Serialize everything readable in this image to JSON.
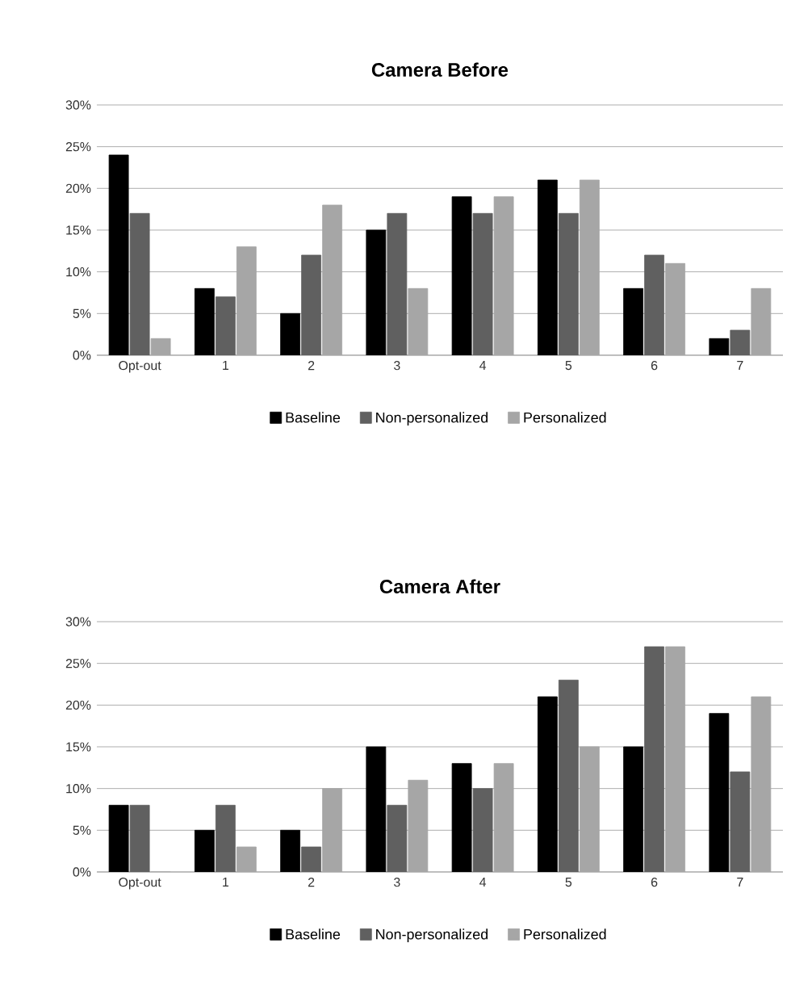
{
  "chart_data": [
    {
      "type": "bar",
      "title": "Camera Before",
      "categories": [
        "Opt-out",
        "1",
        "2",
        "3",
        "4",
        "5",
        "6",
        "7"
      ],
      "series": [
        {
          "name": "Baseline",
          "color": "#000000",
          "values": [
            24,
            8,
            5,
            15,
            19,
            21,
            8,
            2
          ]
        },
        {
          "name": "Non-personalized",
          "color": "#606060",
          "values": [
            17,
            7,
            12,
            17,
            17,
            17,
            12,
            3
          ]
        },
        {
          "name": "Personalized",
          "color": "#a6a6a6",
          "values": [
            2,
            13,
            18,
            8,
            19,
            21,
            11,
            8
          ]
        }
      ],
      "ylim": [
        0,
        30
      ],
      "yticks": [
        {
          "value": 0,
          "label": "0%"
        },
        {
          "value": 5,
          "label": "5%"
        },
        {
          "value": 10,
          "label": "10%"
        },
        {
          "value": 15,
          "label": "15%"
        },
        {
          "value": 20,
          "label": "20%"
        },
        {
          "value": 25,
          "label": "25%"
        },
        {
          "value": 30,
          "label": "30%"
        }
      ],
      "grid": "y",
      "legend": "bottom"
    },
    {
      "type": "bar",
      "title": "Camera After",
      "categories": [
        "Opt-out",
        "1",
        "2",
        "3",
        "4",
        "5",
        "6",
        "7"
      ],
      "series": [
        {
          "name": "Baseline",
          "color": "#000000",
          "values": [
            8,
            5,
            5,
            15,
            13,
            21,
            15,
            19
          ]
        },
        {
          "name": "Non-personalized",
          "color": "#606060",
          "values": [
            8,
            8,
            3,
            8,
            10,
            23,
            27,
            12
          ]
        },
        {
          "name": "Personalized",
          "color": "#a6a6a6",
          "values": [
            0,
            3,
            10,
            11,
            13,
            15,
            27,
            21
          ]
        }
      ],
      "ylim": [
        0,
        30
      ],
      "yticks": [
        {
          "value": 0,
          "label": "0%"
        },
        {
          "value": 5,
          "label": "5%"
        },
        {
          "value": 10,
          "label": "10%"
        },
        {
          "value": 15,
          "label": "15%"
        },
        {
          "value": 20,
          "label": "20%"
        },
        {
          "value": 25,
          "label": "25%"
        },
        {
          "value": 30,
          "label": "30%"
        }
      ],
      "grid": "y",
      "legend": "bottom"
    }
  ]
}
